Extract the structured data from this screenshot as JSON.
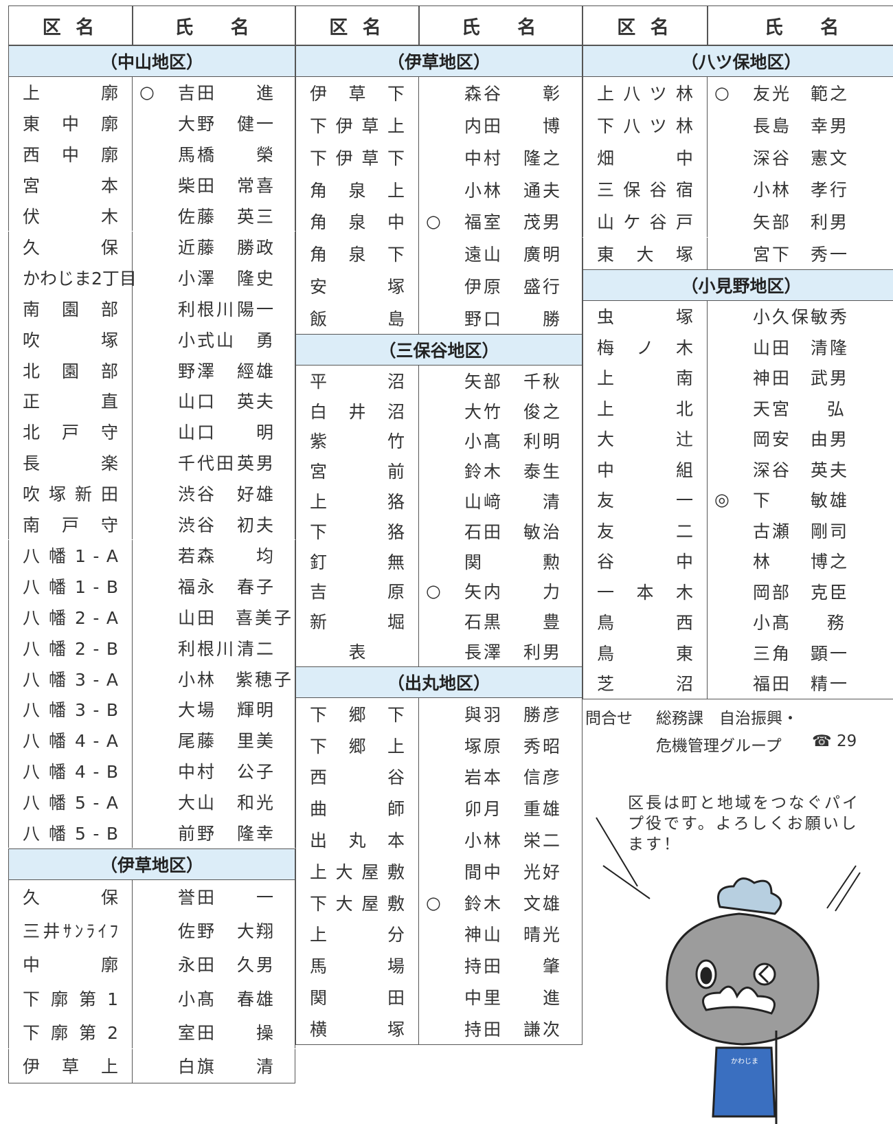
{
  "header": {
    "ward": "区 名",
    "name": "氏　 名"
  },
  "columns": [
    {
      "sections": [
        {
          "title": "（中山地区）",
          "rows": [
            {
              "ward": "上 廓",
              "mark": "○",
              "name": [
                "吉田",
                "進"
              ]
            },
            {
              "ward": "東 中 廓",
              "name": [
                "大野",
                "健一"
              ]
            },
            {
              "ward": "西 中 廓",
              "name": [
                "馬橋",
                "榮"
              ]
            },
            {
              "ward": "宮 本",
              "name": [
                "柴田",
                "常喜"
              ]
            },
            {
              "ward": "伏 木",
              "name": [
                "佐藤",
                "英三"
              ]
            },
            {
              "ward": "久 保",
              "name": [
                "近藤",
                "勝政"
              ]
            },
            {
              "ward": "かわじま2丁目",
              "name": [
                "小澤",
                "隆史"
              ]
            },
            {
              "ward": "南 園 部",
              "name": [
                "利根川",
                "陽一"
              ]
            },
            {
              "ward": "吹 塚",
              "name": [
                "小式山",
                "勇"
              ]
            },
            {
              "ward": "北 園 部",
              "name": [
                "野澤",
                "經雄"
              ]
            },
            {
              "ward": "正 直",
              "name": [
                "山口",
                "英夫"
              ]
            },
            {
              "ward": "北 戸 守",
              "name": [
                "山口",
                "明"
              ]
            },
            {
              "ward": "長 楽",
              "name": [
                "千代田",
                "英男"
              ]
            },
            {
              "ward": "吹 塚 新 田",
              "name": [
                "渋谷",
                "好雄"
              ]
            },
            {
              "ward": "南 戸 守",
              "name": [
                "渋谷",
                "初夫"
              ]
            },
            {
              "ward": "八 幡 1 - A",
              "name": [
                "若森",
                "均"
              ]
            },
            {
              "ward": "八 幡 1 - B",
              "name": [
                "福永",
                "春子"
              ]
            },
            {
              "ward": "八 幡 2 - A",
              "name": [
                "山田",
                "喜美子"
              ]
            },
            {
              "ward": "八 幡 2 - B",
              "name": [
                "利根川",
                "清二"
              ]
            },
            {
              "ward": "八 幡 3 - A",
              "name": [
                "小林",
                "紫穂子"
              ]
            },
            {
              "ward": "八 幡 3 - B",
              "name": [
                "大場",
                "輝明"
              ]
            },
            {
              "ward": "八 幡 4 - A",
              "name": [
                "尾藤",
                "里美"
              ]
            },
            {
              "ward": "八 幡 4 - B",
              "name": [
                "中村",
                "公子"
              ]
            },
            {
              "ward": "八 幡 5 - A",
              "name": [
                "大山",
                "和光"
              ]
            },
            {
              "ward": "八 幡 5 - B",
              "name": [
                "前野",
                "隆幸"
              ]
            }
          ]
        },
        {
          "title": "（伊草地区）",
          "rows": [
            {
              "ward": "久 保",
              "name": [
                "誉田",
                "一"
              ]
            },
            {
              "ward": "三井ｻﾝﾗｲﾌ",
              "name": [
                "佐野",
                "大翔"
              ]
            },
            {
              "ward": "中 廓",
              "name": [
                "永田",
                "久男"
              ]
            },
            {
              "ward": "下 廓 第 1",
              "name": [
                "小髙",
                "春雄"
              ]
            },
            {
              "ward": "下 廓 第 2",
              "name": [
                "室田",
                "操"
              ]
            },
            {
              "ward": "伊 草 上",
              "name": [
                "白旗",
                "清"
              ]
            }
          ]
        }
      ]
    },
    {
      "sections": [
        {
          "title": "（伊草地区）",
          "rows": [
            {
              "ward": "伊 草 下",
              "name": [
                "森谷",
                "彰"
              ]
            },
            {
              "ward": "下 伊 草 上",
              "name": [
                "内田",
                "博"
              ]
            },
            {
              "ward": "下 伊 草 下",
              "name": [
                "中村",
                "隆之"
              ]
            },
            {
              "ward": "角 泉 上",
              "name": [
                "小林",
                "通夫"
              ]
            },
            {
              "ward": "角 泉 中",
              "mark": "○",
              "name": [
                "福室",
                "茂男"
              ]
            },
            {
              "ward": "角 泉 下",
              "name": [
                "遠山",
                "廣明"
              ]
            },
            {
              "ward": "安 塚",
              "name": [
                "伊原",
                "盛行"
              ]
            },
            {
              "ward": "飯 島",
              "name": [
                "野口",
                "勝"
              ]
            }
          ]
        },
        {
          "title": "（三保谷地区）",
          "rows": [
            {
              "ward": "平 沼",
              "name": [
                "矢部",
                "千秋"
              ]
            },
            {
              "ward": "白 井 沼",
              "name": [
                "大竹",
                "俊之"
              ]
            },
            {
              "ward": "紫 竹",
              "name": [
                "小髙",
                "利明"
              ]
            },
            {
              "ward": "宮 前",
              "name": [
                "鈴木",
                "泰生"
              ]
            },
            {
              "ward": "上 狢",
              "name": [
                "山﨑",
                "清"
              ]
            },
            {
              "ward": "下 狢",
              "name": [
                "石田",
                "敏治"
              ]
            },
            {
              "ward": "釘 無",
              "name": [
                "関",
                "勲"
              ]
            },
            {
              "ward": "吉 原",
              "mark": "○",
              "name": [
                "矢内",
                "力"
              ]
            },
            {
              "ward": "新 堀",
              "name": [
                "石黒",
                "豊"
              ]
            },
            {
              "ward": "表",
              "name": [
                "長澤",
                "利男"
              ]
            }
          ]
        },
        {
          "title": "（出丸地区）",
          "rows": [
            {
              "ward": "下 郷 下",
              "name": [
                "與羽",
                "勝彦"
              ]
            },
            {
              "ward": "下 郷 上",
              "name": [
                "塚原",
                "秀昭"
              ]
            },
            {
              "ward": "西 谷",
              "name": [
                "岩本",
                "信彦"
              ]
            },
            {
              "ward": "曲 師",
              "name": [
                "卯月",
                "重雄"
              ]
            },
            {
              "ward": "出 丸 本",
              "name": [
                "小林",
                "栄二"
              ]
            },
            {
              "ward": "上 大 屋 敷",
              "name": [
                "間中",
                "光好"
              ]
            },
            {
              "ward": "下 大 屋 敷",
              "mark": "○",
              "name": [
                "鈴木",
                "文雄"
              ]
            },
            {
              "ward": "上 分",
              "name": [
                "神山",
                "晴光"
              ]
            },
            {
              "ward": "馬 場",
              "name": [
                "持田",
                "肇"
              ]
            },
            {
              "ward": "関 田",
              "name": [
                "中里",
                "進"
              ]
            },
            {
              "ward": "横 塚",
              "name": [
                "持田",
                "謙次"
              ]
            }
          ]
        }
      ]
    },
    {
      "sections": [
        {
          "title": "（八ツ保地区）",
          "rows": [
            {
              "ward": "上 八 ツ 林",
              "mark": "○",
              "name": [
                "友光",
                "範之"
              ]
            },
            {
              "ward": "下 八 ツ 林",
              "name": [
                "長島",
                "幸男"
              ]
            },
            {
              "ward": "畑 中",
              "name": [
                "深谷",
                "憲文"
              ]
            },
            {
              "ward": "三 保 谷 宿",
              "name": [
                "小林",
                "孝行"
              ]
            },
            {
              "ward": "山 ケ 谷 戸",
              "name": [
                "矢部",
                "利男"
              ]
            },
            {
              "ward": "東 大 塚",
              "name": [
                "宮下",
                "秀一"
              ]
            }
          ]
        },
        {
          "title": "（小見野地区）",
          "rows": [
            {
              "ward": "虫 塚",
              "name": [
                "小久保",
                "敏秀"
              ]
            },
            {
              "ward": "梅 ノ 木",
              "name": [
                "山田",
                "清隆"
              ]
            },
            {
              "ward": "上 南",
              "name": [
                "神田",
                "武男"
              ]
            },
            {
              "ward": "上 北",
              "name": [
                "天宮",
                "弘"
              ]
            },
            {
              "ward": "大 辻",
              "name": [
                "岡安",
                "由男"
              ]
            },
            {
              "ward": "中 組",
              "name": [
                "深谷",
                "英夫"
              ]
            },
            {
              "ward": "友 一",
              "mark": "◎",
              "name": [
                "下",
                "敏雄"
              ]
            },
            {
              "ward": "友 二",
              "name": [
                "古瀬",
                "剛司"
              ]
            },
            {
              "ward": "谷 中",
              "name": [
                "林",
                "博之"
              ]
            },
            {
              "ward": "一 本 木",
              "name": [
                "岡部",
                "克臣"
              ]
            },
            {
              "ward": "鳥 西",
              "name": [
                "小髙",
                "務"
              ]
            },
            {
              "ward": "鳥 東",
              "name": [
                "三角",
                "顕一"
              ]
            },
            {
              "ward": "芝 沼",
              "name": [
                "福田",
                "精一"
              ]
            }
          ]
        }
      ]
    }
  ],
  "contact": {
    "label": "問合せ",
    "line1": "総務課　自治振興・",
    "line2": "危機管理グループ",
    "phone": "☎ 29"
  },
  "bubble": [
    "区長は町と地域をつなぐパイ",
    "プ役です。よろしくお願いし",
    "ます！"
  ],
  "badge": "かわじま"
}
